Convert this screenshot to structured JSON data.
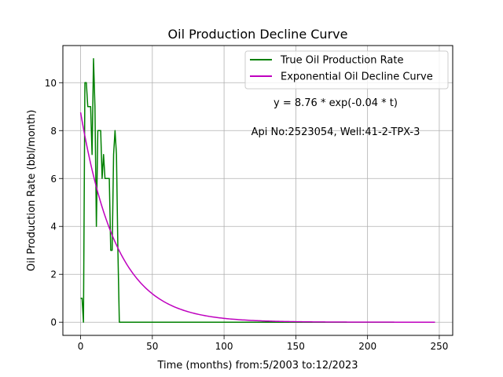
{
  "chart_data": {
    "type": "line",
    "title": "Oil Production Decline Curve",
    "xlabel": "Time (months) from:5/2003 to:12/2023",
    "ylabel": "Oil Production Rate (bbl/month)",
    "xlim": [
      -12.35,
      259.35
    ],
    "ylim": [
      -0.55,
      11.55
    ],
    "xticks": [
      0,
      50,
      100,
      150,
      200,
      250
    ],
    "yticks": [
      0,
      2,
      4,
      6,
      8,
      10
    ],
    "grid": true,
    "legend_position": "top-right",
    "annotations": [
      "y = 8.76 * exp(-0.04 * t)",
      "Api No:2523054, Well:41-2-TPX-3"
    ],
    "series": [
      {
        "name": "True Oil Production Rate",
        "color": "#008000",
        "x": [
          0,
          1,
          2,
          3,
          4,
          5,
          6,
          7,
          8,
          9,
          10,
          11,
          12,
          13,
          14,
          15,
          16,
          17,
          18,
          19,
          20,
          21,
          22,
          23,
          24,
          25,
          26,
          27,
          28,
          30,
          40,
          60,
          100,
          150,
          200,
          247
        ],
        "y": [
          1,
          1,
          0,
          10,
          10,
          9,
          9,
          9,
          7,
          11,
          9,
          4,
          8,
          8,
          8,
          6,
          7,
          6,
          6,
          6,
          6,
          3,
          3,
          7,
          8,
          7,
          3,
          0,
          0,
          0,
          0,
          0,
          0,
          0,
          0,
          0
        ]
      },
      {
        "name": "Exponential Oil Decline Curve",
        "color": "#bf00bf",
        "model": {
          "a": 8.76,
          "b": 0.04
        },
        "x_range": [
          0,
          247
        ]
      }
    ]
  }
}
